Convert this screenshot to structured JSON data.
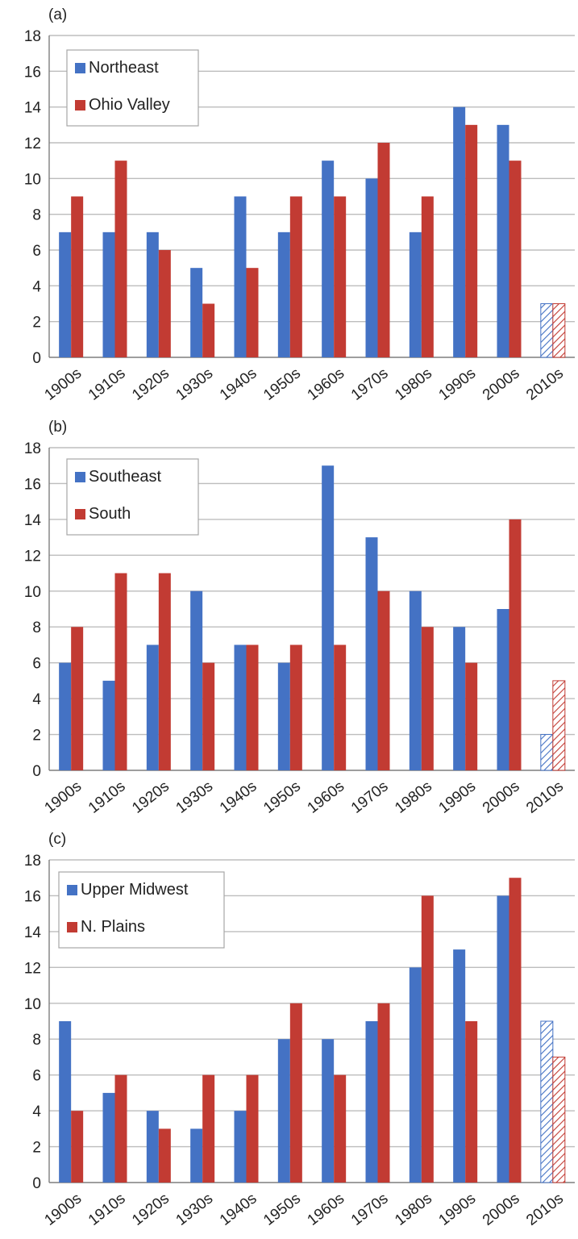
{
  "colors": {
    "blue": "#4472C4",
    "red": "#C23B33",
    "grid": "#bdbdbd"
  },
  "chart_data": [
    {
      "type": "bar",
      "panel_label": "(a)",
      "categories": [
        "1900s",
        "1910s",
        "1920s",
        "1930s",
        "1940s",
        "1950s",
        "1960s",
        "1970s",
        "1980s",
        "1990s",
        "2000s",
        "2010s"
      ],
      "ylim": [
        0,
        18
      ],
      "yticks": [
        0,
        2,
        4,
        6,
        8,
        10,
        12,
        14,
        16,
        18
      ],
      "grid": true,
      "legend_position": "top-left",
      "hatched_categories": [
        "2010s"
      ],
      "series": [
        {
          "name": "Northeast",
          "color": "#4472C4",
          "values": [
            7,
            7,
            7,
            5,
            9,
            7,
            11,
            10,
            7,
            14,
            13,
            3
          ]
        },
        {
          "name": "Ohio Valley",
          "color": "#C23B33",
          "values": [
            9,
            11,
            6,
            3,
            5,
            9,
            9,
            12,
            9,
            13,
            11,
            3
          ]
        }
      ]
    },
    {
      "type": "bar",
      "panel_label": "(b)",
      "categories": [
        "1900s",
        "1910s",
        "1920s",
        "1930s",
        "1940s",
        "1950s",
        "1960s",
        "1970s",
        "1980s",
        "1990s",
        "2000s",
        "2010s"
      ],
      "ylim": [
        0,
        18
      ],
      "yticks": [
        0,
        2,
        4,
        6,
        8,
        10,
        12,
        14,
        16,
        18
      ],
      "grid": true,
      "legend_position": "top-left",
      "hatched_categories": [
        "2010s"
      ],
      "series": [
        {
          "name": "Southeast",
          "color": "#4472C4",
          "values": [
            6,
            5,
            7,
            10,
            7,
            6,
            17,
            13,
            10,
            8,
            9,
            2
          ]
        },
        {
          "name": "South",
          "color": "#C23B33",
          "values": [
            8,
            11,
            11,
            6,
            7,
            7,
            7,
            10,
            8,
            6,
            14,
            5
          ]
        }
      ]
    },
    {
      "type": "bar",
      "panel_label": "(c)",
      "categories": [
        "1900s",
        "1910s",
        "1920s",
        "1930s",
        "1940s",
        "1950s",
        "1960s",
        "1970s",
        "1980s",
        "1990s",
        "2000s",
        "2010s"
      ],
      "ylim": [
        0,
        18
      ],
      "yticks": [
        0,
        2,
        4,
        6,
        8,
        10,
        12,
        14,
        16,
        18
      ],
      "grid": true,
      "legend_position": "top-left",
      "hatched_categories": [
        "2010s"
      ],
      "series": [
        {
          "name": "Upper Midwest",
          "color": "#4472C4",
          "values": [
            9,
            5,
            4,
            3,
            4,
            8,
            8,
            9,
            12,
            13,
            16,
            9
          ]
        },
        {
          "name": "N. Plains",
          "color": "#C23B33",
          "values": [
            4,
            6,
            3,
            6,
            6,
            10,
            6,
            10,
            16,
            9,
            17,
            7
          ]
        }
      ]
    }
  ]
}
